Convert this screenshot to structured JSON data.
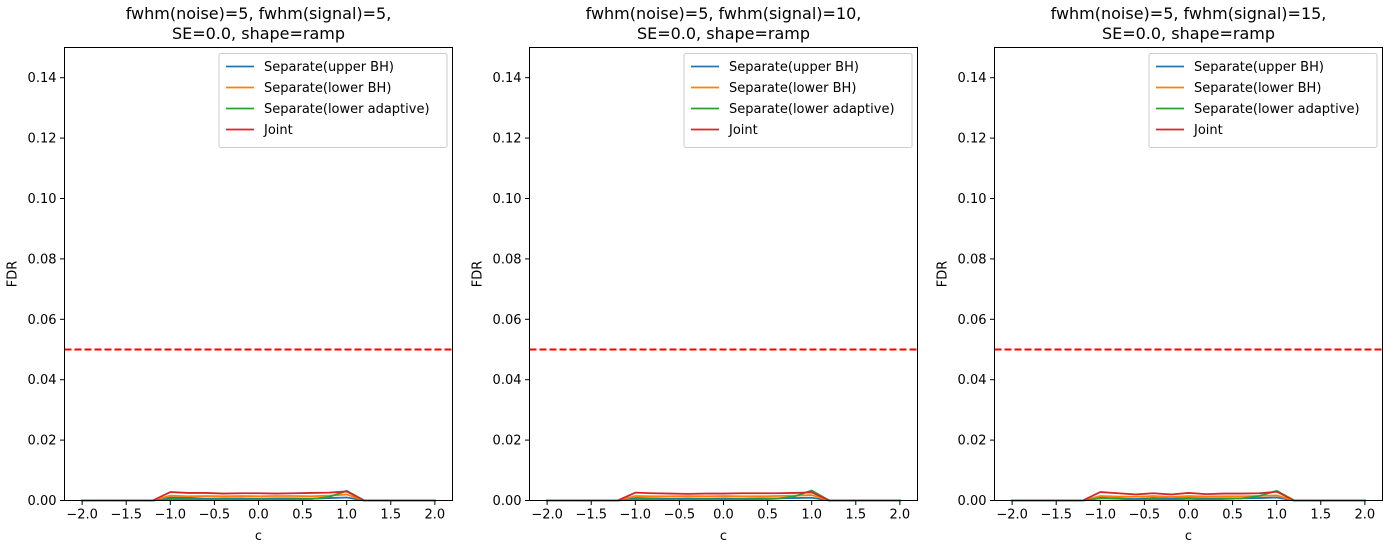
{
  "chart_data": [
    {
      "type": "line",
      "title_lines": [
        "fwhm(noise)=5, fwhm(signal)=5,",
        "SE=0.0, shape=ramp"
      ],
      "xlabel": "c",
      "ylabel": "FDR",
      "xlim": [
        -2.2,
        2.2
      ],
      "ylim": [
        0.0,
        0.15
      ],
      "xticks": [
        "-2.0",
        "-1.5",
        "-1.0",
        "-0.5",
        "0.0",
        "0.5",
        "1.0",
        "1.5",
        "2.0"
      ],
      "yticks": [
        "0.00",
        "0.02",
        "0.04",
        "0.06",
        "0.08",
        "0.10",
        "0.12",
        "0.14"
      ],
      "legend_position": "top-right",
      "reference_line": {
        "y": 0.05,
        "color": "#ff0000",
        "style": "dashed"
      },
      "x": [
        -2.0,
        -1.8,
        -1.6,
        -1.4,
        -1.2,
        -1.0,
        -0.8,
        -0.6,
        -0.4,
        -0.2,
        0.0,
        0.2,
        0.4,
        0.6,
        0.8,
        1.0,
        1.2,
        1.4,
        1.6,
        1.8,
        2.0
      ],
      "series": [
        {
          "name": "Separate(upper BH)",
          "color": "#1f77b4",
          "values": [
            0,
            0,
            0,
            0,
            0,
            0.001,
            0.0009,
            0.0006,
            0.0007,
            0.0007,
            0.0006,
            0.0007,
            0.0007,
            0.0006,
            0.0008,
            0.001,
            0,
            0,
            0,
            0,
            0
          ]
        },
        {
          "name": "Separate(lower BH)",
          "color": "#ff7f0e",
          "values": [
            0,
            0,
            0,
            0,
            0,
            0.0016,
            0.0014,
            0.0015,
            0.0014,
            0.0015,
            0.0014,
            0.0015,
            0.0015,
            0.0014,
            0.0016,
            0.002,
            0,
            0,
            0,
            0,
            0
          ]
        },
        {
          "name": "Separate(lower adaptive)",
          "color": "#2ca02c",
          "values": [
            0,
            0,
            0,
            0,
            0,
            0.0005,
            0.0004,
            0.0003,
            0.0004,
            0.0003,
            0.0004,
            0.0003,
            0.0004,
            0.0005,
            0.0012,
            0.0032,
            0,
            0,
            0,
            0,
            0
          ]
        },
        {
          "name": "Joint",
          "color": "#d62728",
          "values": [
            0,
            0,
            0,
            0,
            0,
            0.0028,
            0.0025,
            0.0025,
            0.0023,
            0.0024,
            0.0024,
            0.0023,
            0.0024,
            0.0025,
            0.0026,
            0.003,
            0,
            0,
            0,
            0,
            0
          ]
        }
      ]
    },
    {
      "type": "line",
      "title_lines": [
        "fwhm(noise)=5, fwhm(signal)=10,",
        "SE=0.0, shape=ramp"
      ],
      "xlabel": "c",
      "ylabel": "FDR",
      "xlim": [
        -2.2,
        2.2
      ],
      "ylim": [
        0.0,
        0.15
      ],
      "xticks": [
        "-2.0",
        "-1.5",
        "-1.0",
        "-0.5",
        "0.0",
        "0.5",
        "1.0",
        "1.5",
        "2.0"
      ],
      "yticks": [
        "0.00",
        "0.02",
        "0.04",
        "0.06",
        "0.08",
        "0.10",
        "0.12",
        "0.14"
      ],
      "legend_position": "top-right",
      "reference_line": {
        "y": 0.05,
        "color": "#ff0000",
        "style": "dashed"
      },
      "x": [
        -2.0,
        -1.8,
        -1.6,
        -1.4,
        -1.2,
        -1.0,
        -0.8,
        -0.6,
        -0.4,
        -0.2,
        0.0,
        0.2,
        0.4,
        0.6,
        0.8,
        1.0,
        1.2,
        1.4,
        1.6,
        1.8,
        2.0
      ],
      "series": [
        {
          "name": "Separate(upper BH)",
          "color": "#1f77b4",
          "values": [
            0,
            0,
            0,
            0,
            0,
            0.0008,
            0.0007,
            0.0006,
            0.0007,
            0.0006,
            0.0007,
            0.0006,
            0.0007,
            0.0007,
            0.0008,
            0.0009,
            0,
            0,
            0,
            0,
            0
          ]
        },
        {
          "name": "Separate(lower BH)",
          "color": "#ff7f0e",
          "values": [
            0,
            0,
            0,
            0,
            0,
            0.0015,
            0.0014,
            0.0014,
            0.0015,
            0.0014,
            0.0015,
            0.0014,
            0.0014,
            0.0015,
            0.0016,
            0.0018,
            0,
            0,
            0,
            0,
            0
          ]
        },
        {
          "name": "Separate(lower adaptive)",
          "color": "#2ca02c",
          "values": [
            0,
            0,
            0,
            0,
            0,
            0.0004,
            0.0004,
            0.0003,
            0.0003,
            0.0004,
            0.0003,
            0.0004,
            0.0004,
            0.0006,
            0.0013,
            0.0033,
            0,
            0,
            0,
            0,
            0
          ]
        },
        {
          "name": "Joint",
          "color": "#d62728",
          "values": [
            0,
            0,
            0,
            0,
            0,
            0.0026,
            0.0024,
            0.0023,
            0.0022,
            0.0023,
            0.0023,
            0.0024,
            0.0024,
            0.0024,
            0.0025,
            0.0027,
            0,
            0,
            0,
            0,
            0
          ]
        }
      ]
    },
    {
      "type": "line",
      "title_lines": [
        "fwhm(noise)=5, fwhm(signal)=15,",
        "SE=0.0, shape=ramp"
      ],
      "xlabel": "c",
      "ylabel": "FDR",
      "xlim": [
        -2.2,
        2.2
      ],
      "ylim": [
        0.0,
        0.15
      ],
      "xticks": [
        "-2.0",
        "-1.5",
        "-1.0",
        "-0.5",
        "0.0",
        "0.5",
        "1.0",
        "1.5",
        "2.0"
      ],
      "yticks": [
        "0.00",
        "0.02",
        "0.04",
        "0.06",
        "0.08",
        "0.10",
        "0.12",
        "0.14"
      ],
      "legend_position": "top-right",
      "reference_line": {
        "y": 0.05,
        "color": "#ff0000",
        "style": "dashed"
      },
      "x": [
        -2.0,
        -1.8,
        -1.6,
        -1.4,
        -1.2,
        -1.0,
        -0.8,
        -0.6,
        -0.4,
        -0.2,
        0.0,
        0.2,
        0.4,
        0.6,
        0.8,
        1.0,
        1.2,
        1.4,
        1.6,
        1.8,
        2.0
      ],
      "series": [
        {
          "name": "Separate(upper BH)",
          "color": "#1f77b4",
          "values": [
            0,
            0,
            0,
            0,
            0,
            0.0009,
            0.0007,
            0.0005,
            0.0008,
            0.0006,
            0.0008,
            0.0006,
            0.0007,
            0.0007,
            0.0008,
            0.001,
            0,
            0,
            0,
            0,
            0
          ]
        },
        {
          "name": "Separate(lower BH)",
          "color": "#ff7f0e",
          "values": [
            0,
            0,
            0,
            0,
            0,
            0.0015,
            0.0013,
            0.0012,
            0.0015,
            0.0012,
            0.0015,
            0.0013,
            0.0014,
            0.0014,
            0.0015,
            0.0017,
            0,
            0,
            0,
            0,
            0
          ]
        },
        {
          "name": "Separate(lower adaptive)",
          "color": "#2ca02c",
          "values": [
            0,
            0,
            0,
            0,
            0,
            0.0007,
            0.0006,
            0.0002,
            0.0005,
            0.0002,
            0.0006,
            0.0003,
            0.0005,
            0.0007,
            0.0015,
            0.0032,
            0,
            0,
            0,
            0,
            0
          ]
        },
        {
          "name": "Joint",
          "color": "#d62728",
          "values": [
            0,
            0,
            0,
            0,
            0,
            0.0028,
            0.0024,
            0.002,
            0.0024,
            0.002,
            0.0025,
            0.0021,
            0.0023,
            0.0023,
            0.0024,
            0.0029,
            0,
            0,
            0,
            0,
            0
          ]
        }
      ]
    }
  ]
}
